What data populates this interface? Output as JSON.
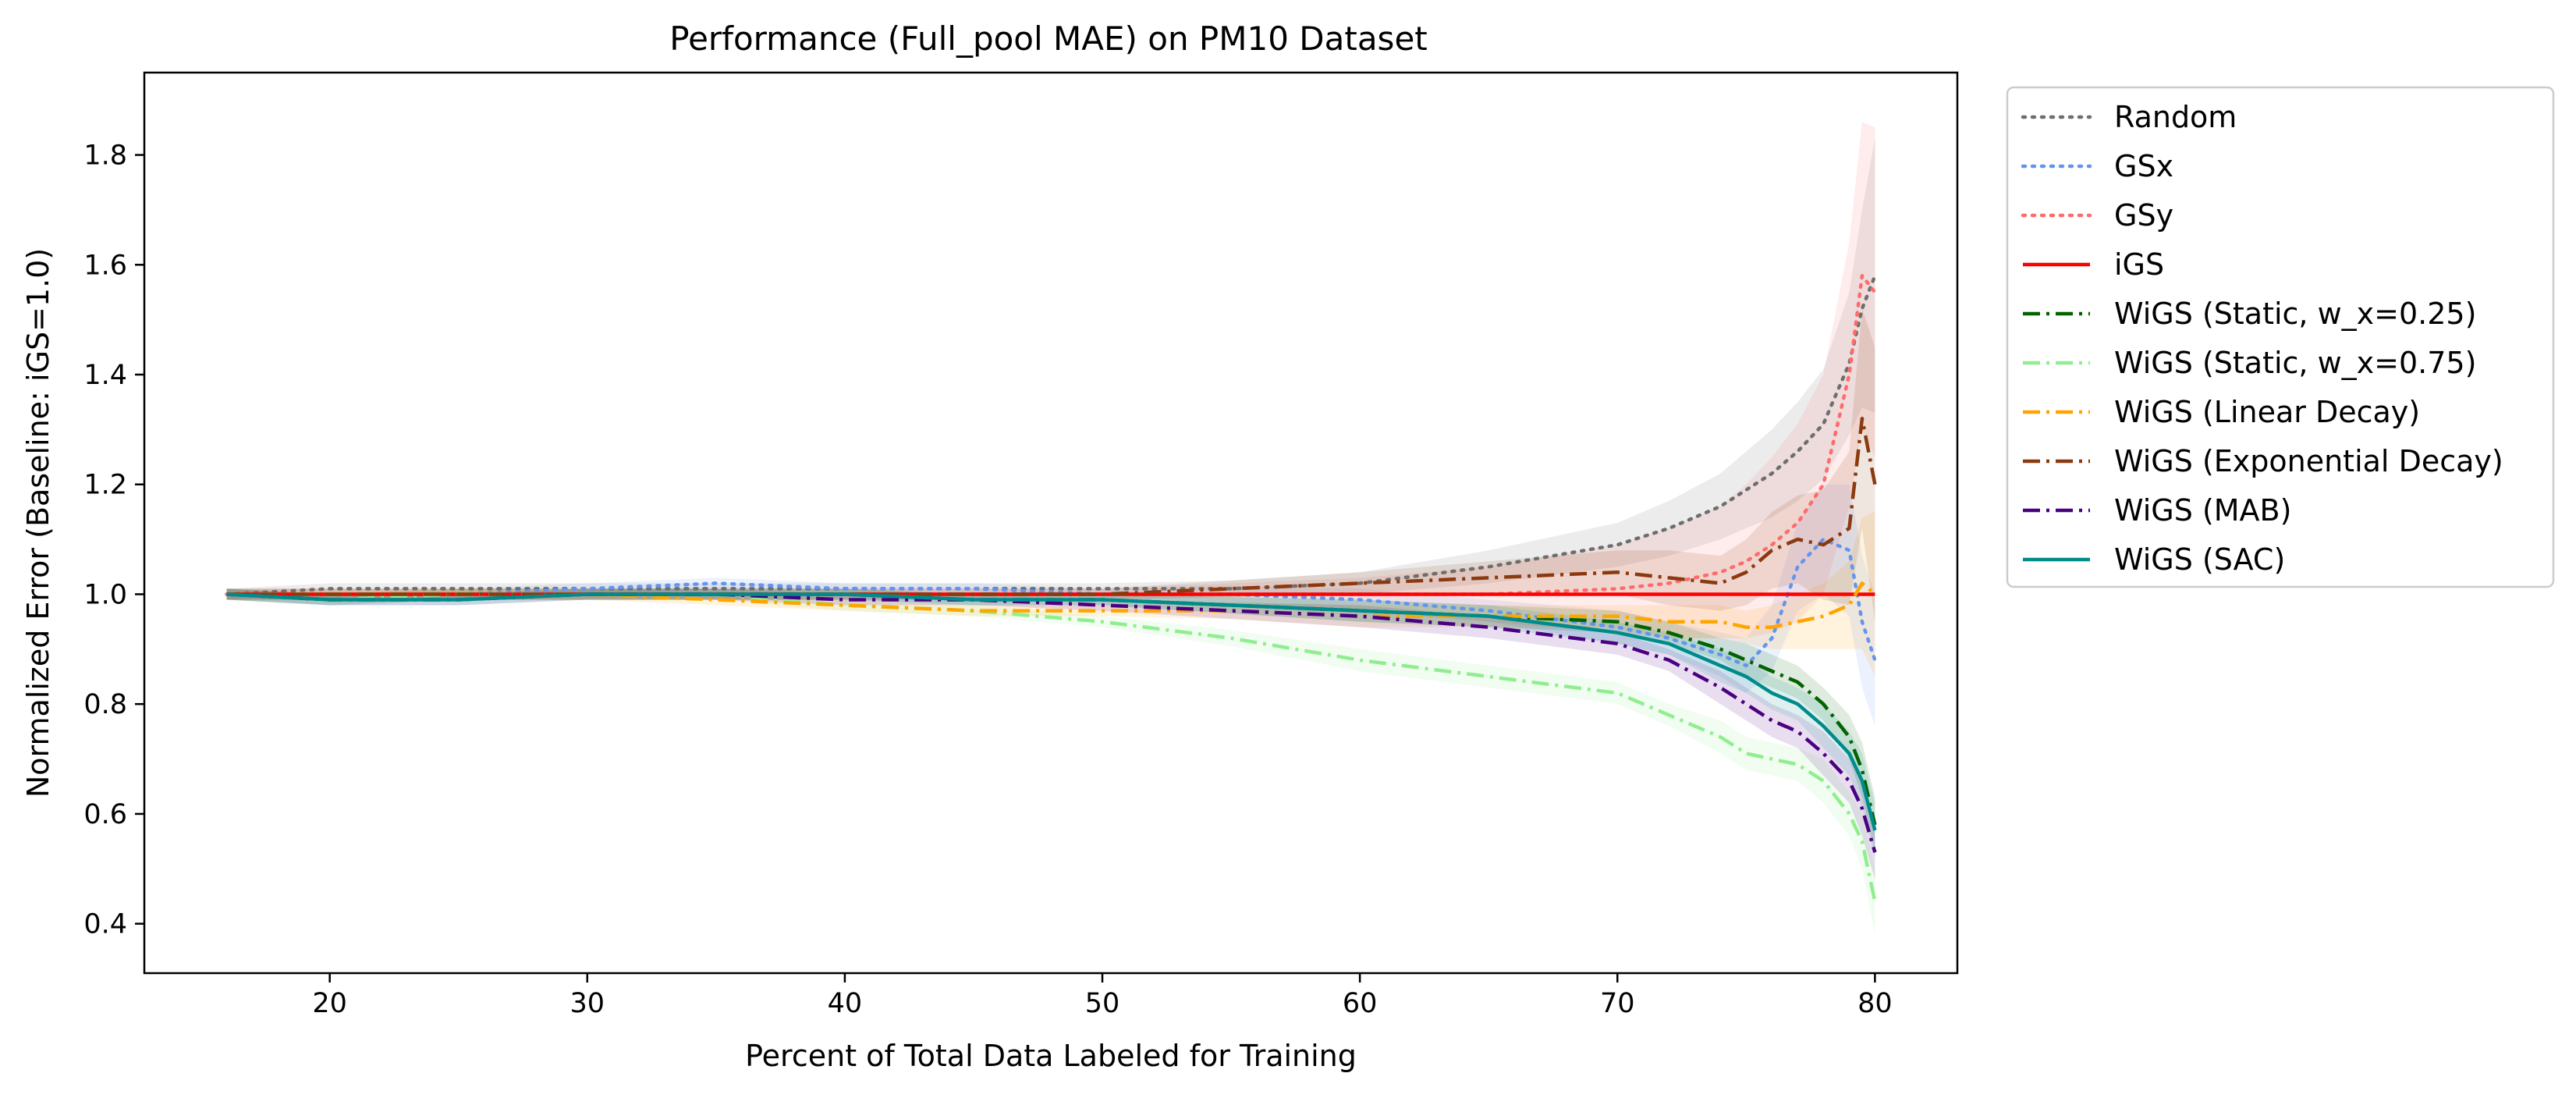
{
  "chart_data": {
    "type": "line",
    "title": "Performance (Full_pool MAE) on PM10 Dataset",
    "xlabel": "Percent of Total Data Labeled for Training",
    "ylabel": "Normalized Error (Baseline: iGS=1.0)",
    "xlim": [
      12.8,
      83.2
    ],
    "ylim": [
      0.31,
      1.95
    ],
    "xticks": [
      20,
      30,
      40,
      50,
      60,
      70,
      80
    ],
    "yticks": [
      0.4,
      0.6,
      0.8,
      1.0,
      1.2,
      1.4,
      1.6,
      1.8
    ],
    "grid": false,
    "legend_position": "outside-right",
    "x": [
      16,
      20,
      25,
      30,
      35,
      40,
      45,
      50,
      55,
      60,
      65,
      70,
      72,
      74,
      75,
      76,
      77,
      78,
      79,
      79.5,
      80
    ],
    "series": [
      {
        "name": "Random",
        "color": "#6e6e6e",
        "dash": "dotted",
        "values": [
          1.0,
          1.01,
          1.01,
          1.01,
          1.01,
          1.01,
          1.01,
          1.01,
          1.01,
          1.02,
          1.05,
          1.09,
          1.12,
          1.16,
          1.19,
          1.22,
          1.26,
          1.31,
          1.42,
          1.52,
          1.58
        ],
        "band": [
          0.01,
          0.01,
          0.01,
          0.01,
          0.01,
          0.01,
          0.01,
          0.01,
          0.015,
          0.02,
          0.03,
          0.04,
          0.05,
          0.06,
          0.07,
          0.08,
          0.09,
          0.1,
          0.13,
          0.18,
          0.25
        ]
      },
      {
        "name": "GSx",
        "color": "#6495ed",
        "dash": "dotted",
        "values": [
          1.0,
          1.0,
          1.0,
          1.01,
          1.02,
          1.01,
          1.01,
          1.0,
          1.0,
          0.99,
          0.97,
          0.94,
          0.92,
          0.89,
          0.87,
          0.92,
          1.05,
          1.1,
          1.08,
          0.95,
          0.88
        ],
        "band": [
          0.01,
          0.01,
          0.01,
          0.01,
          0.01,
          0.01,
          0.01,
          0.01,
          0.015,
          0.02,
          0.02,
          0.03,
          0.03,
          0.04,
          0.05,
          0.06,
          0.08,
          0.1,
          0.12,
          0.12,
          0.12
        ]
      },
      {
        "name": "GSy",
        "color": "#ff6b6b",
        "dash": "dotted",
        "values": [
          1.0,
          1.0,
          1.0,
          1.0,
          1.0,
          1.0,
          1.0,
          1.0,
          1.0,
          1.0,
          1.0,
          1.01,
          1.02,
          1.04,
          1.06,
          1.09,
          1.13,
          1.2,
          1.4,
          1.58,
          1.55
        ],
        "band": [
          0.01,
          0.01,
          0.01,
          0.01,
          0.01,
          0.01,
          0.01,
          0.01,
          0.02,
          0.03,
          0.05,
          0.08,
          0.1,
          0.12,
          0.14,
          0.16,
          0.18,
          0.2,
          0.24,
          0.28,
          0.3
        ]
      },
      {
        "name": "iGS",
        "color": "#ff0000",
        "dash": "solid",
        "values": [
          1.0,
          1.0,
          1.0,
          1.0,
          1.0,
          1.0,
          1.0,
          1.0,
          1.0,
          1.0,
          1.0,
          1.0,
          1.0,
          1.0,
          1.0,
          1.0,
          1.0,
          1.0,
          1.0,
          1.0,
          1.0
        ],
        "band": [
          0,
          0,
          0,
          0,
          0,
          0,
          0,
          0,
          0,
          0,
          0,
          0,
          0,
          0,
          0,
          0,
          0,
          0,
          0,
          0,
          0
        ]
      },
      {
        "name": "WiGS (Static, w_x=0.25)",
        "color": "#006400",
        "dash": "dashdot",
        "values": [
          1.0,
          0.99,
          1.0,
          1.0,
          1.0,
          1.0,
          0.99,
          0.99,
          0.98,
          0.97,
          0.96,
          0.95,
          0.93,
          0.9,
          0.88,
          0.86,
          0.84,
          0.8,
          0.74,
          0.68,
          0.58
        ],
        "band": [
          0.01,
          0.01,
          0.01,
          0.01,
          0.01,
          0.01,
          0.01,
          0.01,
          0.015,
          0.02,
          0.02,
          0.02,
          0.02,
          0.02,
          0.03,
          0.03,
          0.03,
          0.03,
          0.04,
          0.05,
          0.05
        ]
      },
      {
        "name": "WiGS (Static, w_x=0.75)",
        "color": "#90ee90",
        "dash": "dashdot",
        "values": [
          1.0,
          0.99,
          1.0,
          1.0,
          1.0,
          0.98,
          0.97,
          0.95,
          0.92,
          0.88,
          0.85,
          0.82,
          0.78,
          0.74,
          0.71,
          0.7,
          0.69,
          0.66,
          0.6,
          0.55,
          0.44
        ],
        "band": [
          0.01,
          0.01,
          0.01,
          0.01,
          0.01,
          0.01,
          0.01,
          0.01,
          0.015,
          0.02,
          0.02,
          0.02,
          0.02,
          0.03,
          0.03,
          0.03,
          0.03,
          0.04,
          0.04,
          0.05,
          0.06
        ]
      },
      {
        "name": "WiGS (Linear Decay)",
        "color": "#ffa500",
        "dash": "dashdot",
        "values": [
          1.0,
          1.0,
          1.0,
          1.0,
          0.99,
          0.98,
          0.97,
          0.97,
          0.97,
          0.96,
          0.96,
          0.96,
          0.95,
          0.95,
          0.94,
          0.94,
          0.95,
          0.96,
          0.98,
          1.02,
          1.0
        ],
        "band": [
          0.01,
          0.01,
          0.01,
          0.01,
          0.01,
          0.01,
          0.01,
          0.01,
          0.015,
          0.02,
          0.02,
          0.02,
          0.03,
          0.03,
          0.03,
          0.04,
          0.05,
          0.06,
          0.08,
          0.12,
          0.15
        ]
      },
      {
        "name": "WiGS (Exponential Decay)",
        "color": "#8b3a0f",
        "dash": "dashdot",
        "values": [
          1.0,
          1.0,
          1.0,
          1.0,
          1.0,
          1.0,
          1.0,
          1.0,
          1.01,
          1.02,
          1.03,
          1.04,
          1.03,
          1.02,
          1.04,
          1.08,
          1.1,
          1.09,
          1.12,
          1.32,
          1.2
        ],
        "band": [
          0.01,
          0.01,
          0.01,
          0.01,
          0.01,
          0.01,
          0.01,
          0.01,
          0.015,
          0.02,
          0.03,
          0.04,
          0.05,
          0.05,
          0.06,
          0.07,
          0.08,
          0.1,
          0.14,
          0.2,
          0.25
        ]
      },
      {
        "name": "WiGS (MAB)",
        "color": "#4b0082",
        "dash": "dashdot",
        "values": [
          1.0,
          0.99,
          0.99,
          1.0,
          1.0,
          0.99,
          0.99,
          0.98,
          0.97,
          0.96,
          0.94,
          0.91,
          0.88,
          0.83,
          0.8,
          0.77,
          0.75,
          0.71,
          0.66,
          0.61,
          0.53
        ],
        "band": [
          0.01,
          0.01,
          0.01,
          0.01,
          0.01,
          0.01,
          0.01,
          0.01,
          0.015,
          0.02,
          0.02,
          0.02,
          0.02,
          0.03,
          0.03,
          0.03,
          0.03,
          0.04,
          0.04,
          0.05,
          0.05
        ]
      },
      {
        "name": "WiGS (SAC)",
        "color": "#008b8b",
        "dash": "solid",
        "values": [
          1.0,
          0.99,
          0.99,
          1.0,
          1.0,
          1.0,
          0.99,
          0.99,
          0.98,
          0.97,
          0.96,
          0.93,
          0.91,
          0.87,
          0.85,
          0.82,
          0.8,
          0.76,
          0.71,
          0.66,
          0.57
        ],
        "band": [
          0.01,
          0.01,
          0.01,
          0.01,
          0.01,
          0.01,
          0.01,
          0.01,
          0.015,
          0.02,
          0.02,
          0.02,
          0.02,
          0.03,
          0.03,
          0.03,
          0.03,
          0.04,
          0.04,
          0.05,
          0.05
        ]
      }
    ]
  }
}
